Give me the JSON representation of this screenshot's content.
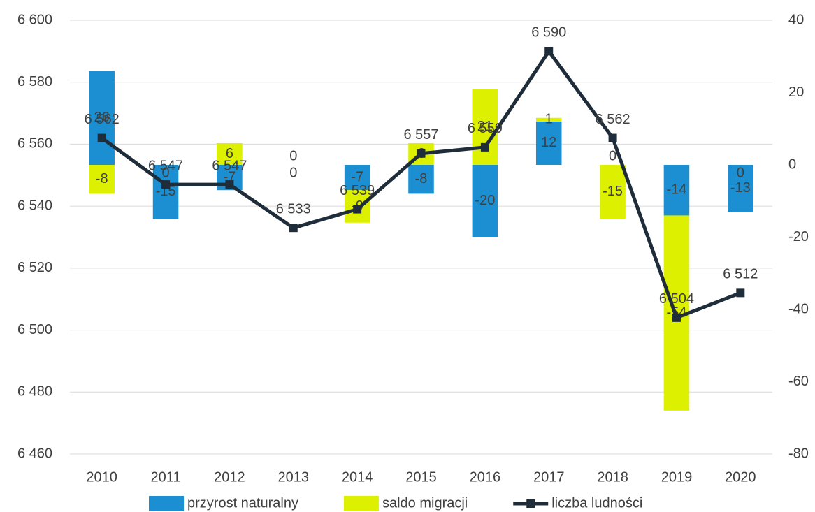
{
  "chart_data": {
    "type": "bar-line",
    "categories": [
      "2010",
      "2011",
      "2012",
      "2013",
      "2014",
      "2015",
      "2016",
      "2017",
      "2018",
      "2019",
      "2020"
    ],
    "series": [
      {
        "name": "przyrost naturalny",
        "type": "bar",
        "axis": "y2",
        "color": "#1b8fd2",
        "values": [
          26,
          -15,
          -7,
          0,
          -7,
          -8,
          -20,
          12,
          0,
          -14,
          -13
        ]
      },
      {
        "name": "saldo migracji",
        "type": "bar",
        "axis": "y2",
        "color": "#ddf000",
        "values": [
          -8,
          0,
          6,
          0,
          -9,
          6,
          21,
          1,
          -15,
          -54,
          0
        ]
      },
      {
        "name": "liczba ludności",
        "type": "line",
        "axis": "y",
        "color": "#1f2d3a",
        "values": [
          6562,
          6547,
          6547,
          6533,
          6539,
          6557,
          6559,
          6590,
          6562,
          6504,
          6512
        ],
        "value_labels": [
          "6 562",
          "6 547",
          "6 547",
          "6 533",
          "6 539",
          "6 557",
          "6 559",
          "6 590",
          "6 562",
          "6 504",
          "6 512"
        ]
      }
    ],
    "ylim": [
      6460,
      6600
    ],
    "yticks": [
      {
        "value": 6460,
        "label": "6 460"
      },
      {
        "value": 6480,
        "label": "6 480"
      },
      {
        "value": 6500,
        "label": "6 500"
      },
      {
        "value": 6520,
        "label": "6 520"
      },
      {
        "value": 6540,
        "label": "6 540"
      },
      {
        "value": 6560,
        "label": "6 560"
      },
      {
        "value": 6580,
        "label": "6 580"
      },
      {
        "value": 6600,
        "label": "6 600"
      }
    ],
    "y2lim": [
      -80,
      40
    ],
    "y2ticks": [
      -80,
      -60,
      -40,
      -20,
      0,
      20,
      40
    ],
    "grid": true,
    "legend": "bottom"
  }
}
